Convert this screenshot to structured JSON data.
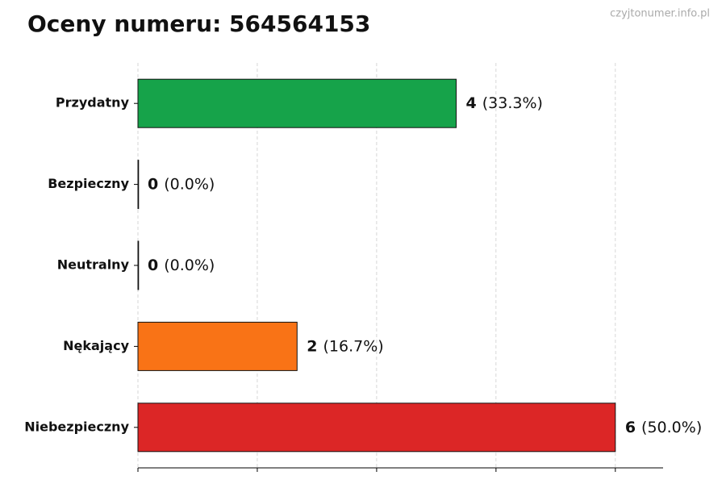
{
  "chart_data": {
    "type": "hbar",
    "title": "Oceny numeru: 564564153",
    "watermark": "czyjtonumer.info.pl",
    "categories": [
      "Przydatny",
      "Bezpieczny",
      "Neutralny",
      "Nękający",
      "Niebezpieczny"
    ],
    "values": [
      4,
      0,
      0,
      2,
      6
    ],
    "percent_labels": [
      "(33.3%)",
      "(0.0%)",
      "(0.0%)",
      "(16.7%)",
      "(50.0%)"
    ],
    "colors": [
      "#16a34a",
      "#9ca3af",
      "#6b7280",
      "#f97316",
      "#dc2626"
    ],
    "xlim": [
      0,
      6.6
    ],
    "xticks": [
      0,
      1.5,
      3,
      4.5,
      6
    ],
    "grid": true
  }
}
